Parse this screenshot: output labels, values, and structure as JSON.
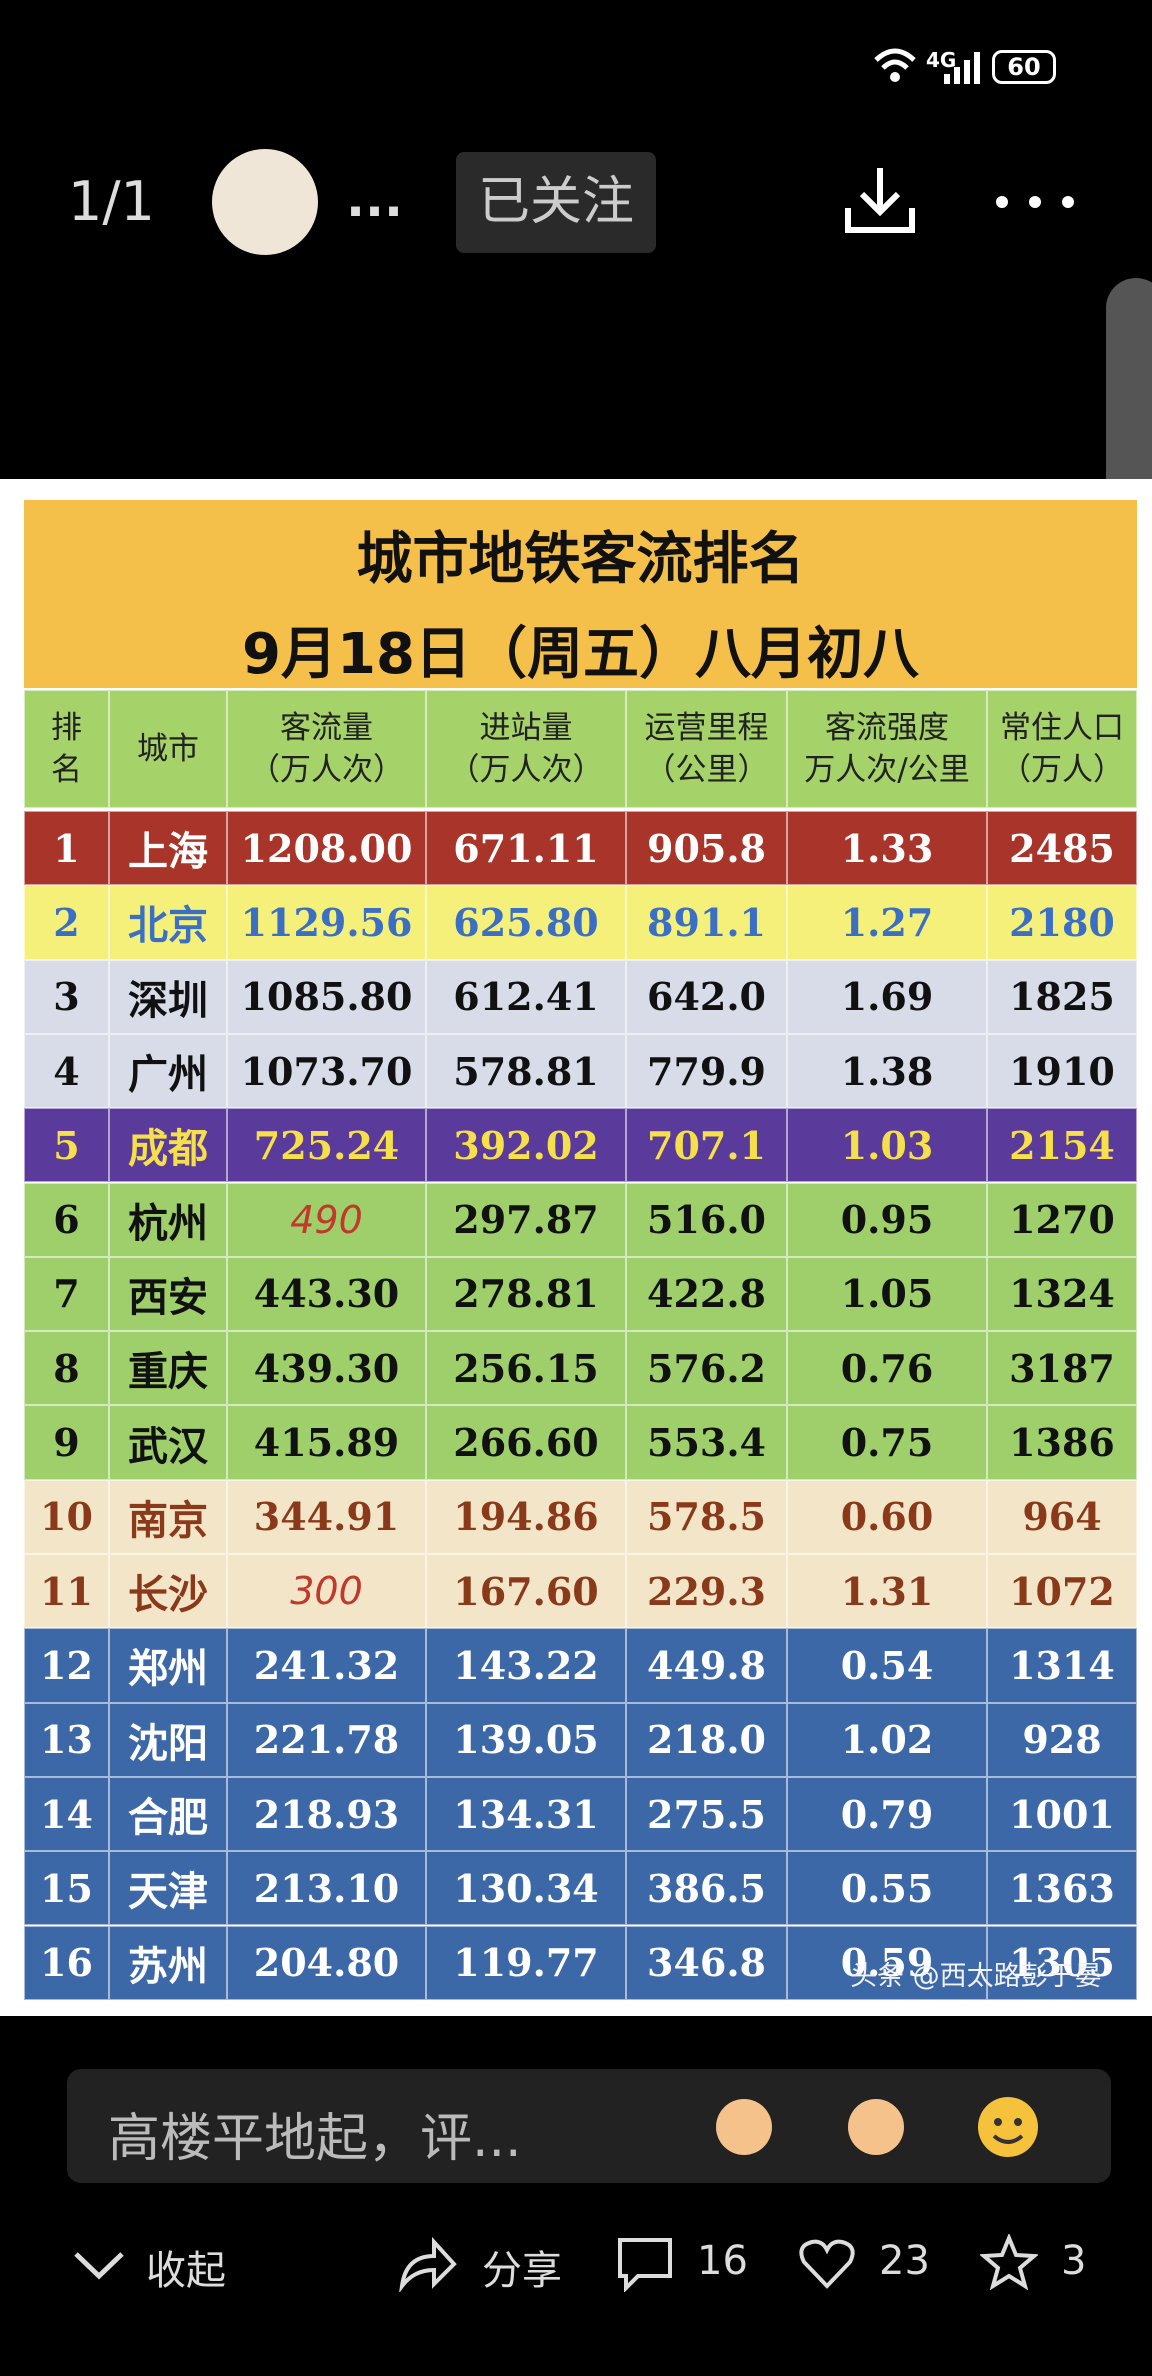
{
  "status_bar": {
    "network": "4G",
    "battery": "60"
  },
  "header": {
    "page": "1/1",
    "author": "...",
    "follow": "已关注"
  },
  "table": {
    "title": "城市地铁客流排名",
    "subtitle": "9月18日（周五）八月初八",
    "columns": [
      [
        "排",
        "名"
      ],
      [
        "城市"
      ],
      [
        "客流量",
        "（万人次）"
      ],
      [
        "进站量",
        "（万人次）"
      ],
      [
        "运营里程",
        "（公里）"
      ],
      [
        "客流强度",
        "万人次/公里"
      ],
      [
        "常住人口",
        "（万人）"
      ]
    ],
    "rows": [
      [
        "1",
        "上海",
        "1208.00",
        "671.11",
        "905.8",
        "1.33",
        "2485"
      ],
      [
        "2",
        "北京",
        "1129.56",
        "625.80",
        "891.1",
        "1.27",
        "2180"
      ],
      [
        "3",
        "深圳",
        "1085.80",
        "612.41",
        "642.0",
        "1.69",
        "1825"
      ],
      [
        "4",
        "广州",
        "1073.70",
        "578.81",
        "779.9",
        "1.38",
        "1910"
      ],
      [
        "5",
        "成都",
        "725.24",
        "392.02",
        "707.1",
        "1.03",
        "2154"
      ],
      [
        "6",
        "杭州",
        "490",
        "297.87",
        "516.0",
        "0.95",
        "1270"
      ],
      [
        "7",
        "西安",
        "443.30",
        "278.81",
        "422.8",
        "1.05",
        "1324"
      ],
      [
        "8",
        "重庆",
        "439.30",
        "256.15",
        "576.2",
        "0.76",
        "3187"
      ],
      [
        "9",
        "武汉",
        "415.89",
        "266.60",
        "553.4",
        "0.75",
        "1386"
      ],
      [
        "10",
        "南京",
        "344.91",
        "194.86",
        "578.5",
        "0.60",
        "964"
      ],
      [
        "11",
        "长沙",
        "300",
        "167.60",
        "229.3",
        "1.31",
        "1072"
      ],
      [
        "12",
        "郑州",
        "241.32",
        "143.22",
        "449.8",
        "0.54",
        "1314"
      ],
      [
        "13",
        "沈阳",
        "221.78",
        "139.05",
        "218.0",
        "1.02",
        "928"
      ],
      [
        "14",
        "合肥",
        "218.93",
        "134.31",
        "275.5",
        "0.79",
        "1001"
      ],
      [
        "15",
        "天津",
        "213.10",
        "130.34",
        "386.5",
        "0.55",
        "1363"
      ],
      [
        "16",
        "苏州",
        "204.80",
        "119.77",
        "346.8",
        "0.59",
        "1305"
      ]
    ]
  },
  "watermark": "头条 @西太路彭于晏",
  "comment_box": {
    "placeholder": "高楼平地起，评..."
  },
  "actions": {
    "collapse": "收起",
    "share": "分享",
    "comments": "16",
    "likes": "23",
    "favorites": "3"
  }
}
